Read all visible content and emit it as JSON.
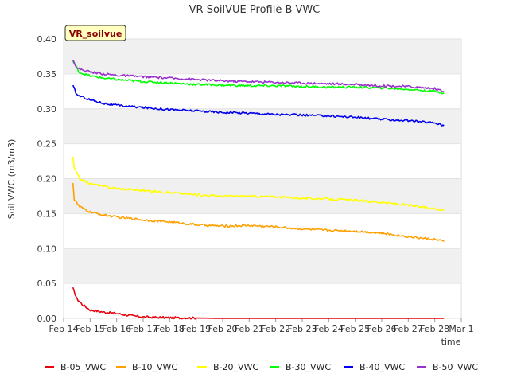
{
  "chart_data": {
    "type": "line",
    "title": "VR SoilVUE Profile B VWC",
    "badge": "VR_soilvue",
    "xlabel": "time",
    "ylabel": "Soil VWC (m3/m3)",
    "ylim": [
      0,
      0.4
    ],
    "yticks": [
      "0.00",
      "0.05",
      "0.10",
      "0.15",
      "0.20",
      "0.25",
      "0.30",
      "0.35",
      "0.40"
    ],
    "xlim": [
      0,
      15
    ],
    "xticks": [
      "Feb 14",
      "Feb 15",
      "Feb 16",
      "Feb 17",
      "Feb 18",
      "Feb 19",
      "Feb 20",
      "Feb 21",
      "Feb 22",
      "Feb 23",
      "Feb 24",
      "Feb 25",
      "Feb 26",
      "Feb 27",
      "Feb 28",
      "Mar 1"
    ],
    "x_units": "days since Feb 14",
    "grid": true,
    "legend_position": "bottom",
    "series": [
      {
        "name": "B-05_VWC",
        "color": "#e8000b",
        "x": [
          0.35,
          0.5,
          0.7,
          1.0,
          1.5,
          2.0,
          2.5,
          3.0,
          4.0,
          6.0,
          9.0,
          12.0,
          14.35
        ],
        "y": [
          0.043,
          0.028,
          0.02,
          0.012,
          0.009,
          0.007,
          0.004,
          0.002,
          0.001,
          0.0,
          0.0,
          0.0,
          0.0
        ]
      },
      {
        "name": "B-10_VWC",
        "color": "#ff9f00",
        "x": [
          0.35,
          0.4,
          0.6,
          1.0,
          1.5,
          2.0,
          3.0,
          4.0,
          5.0,
          6.0,
          7.0,
          8.0,
          9.0,
          10.0,
          11.0,
          12.0,
          13.0,
          14.0,
          14.35
        ],
        "y": [
          0.195,
          0.17,
          0.16,
          0.152,
          0.148,
          0.145,
          0.141,
          0.138,
          0.134,
          0.132,
          0.133,
          0.131,
          0.128,
          0.126,
          0.125,
          0.122,
          0.117,
          0.113,
          0.11
        ]
      },
      {
        "name": "B-20_VWC",
        "color": "#ffff00",
        "x": [
          0.35,
          0.4,
          0.6,
          1.0,
          1.5,
          2.0,
          3.0,
          4.0,
          5.0,
          6.0,
          7.0,
          8.0,
          9.0,
          10.0,
          11.0,
          12.0,
          13.0,
          14.0,
          14.35
        ],
        "y": [
          0.232,
          0.215,
          0.2,
          0.193,
          0.189,
          0.186,
          0.183,
          0.18,
          0.177,
          0.175,
          0.175,
          0.174,
          0.172,
          0.171,
          0.169,
          0.166,
          0.162,
          0.157,
          0.155
        ]
      },
      {
        "name": "B-30_VWC",
        "color": "#00ff00",
        "x": [
          0.35,
          0.6,
          1.0,
          1.5,
          2.0,
          3.0,
          4.0,
          5.0,
          6.0,
          7.0,
          8.0,
          9.0,
          10.0,
          11.0,
          12.0,
          13.0,
          14.0,
          14.35
        ],
        "y": [
          0.368,
          0.352,
          0.347,
          0.344,
          0.342,
          0.339,
          0.337,
          0.335,
          0.334,
          0.333,
          0.333,
          0.332,
          0.331,
          0.331,
          0.33,
          0.328,
          0.325,
          0.323
        ]
      },
      {
        "name": "B-40_VWC",
        "color": "#0000ee",
        "x": [
          0.35,
          0.5,
          1.0,
          1.5,
          2.0,
          3.0,
          4.0,
          5.0,
          6.0,
          7.0,
          8.0,
          9.0,
          10.0,
          11.0,
          12.0,
          13.0,
          14.0,
          14.35
        ],
        "y": [
          0.333,
          0.32,
          0.313,
          0.308,
          0.305,
          0.302,
          0.299,
          0.297,
          0.295,
          0.294,
          0.292,
          0.291,
          0.29,
          0.288,
          0.285,
          0.283,
          0.28,
          0.276
        ]
      },
      {
        "name": "B-50_VWC",
        "color": "#9932cc",
        "x": [
          0.35,
          0.5,
          1.0,
          1.5,
          2.0,
          3.0,
          4.0,
          5.0,
          6.0,
          7.0,
          8.0,
          9.0,
          10.0,
          11.0,
          12.0,
          13.0,
          14.0,
          14.35
        ],
        "y": [
          0.371,
          0.358,
          0.353,
          0.35,
          0.348,
          0.346,
          0.344,
          0.342,
          0.34,
          0.339,
          0.338,
          0.337,
          0.336,
          0.335,
          0.333,
          0.332,
          0.329,
          0.325
        ]
      }
    ]
  }
}
